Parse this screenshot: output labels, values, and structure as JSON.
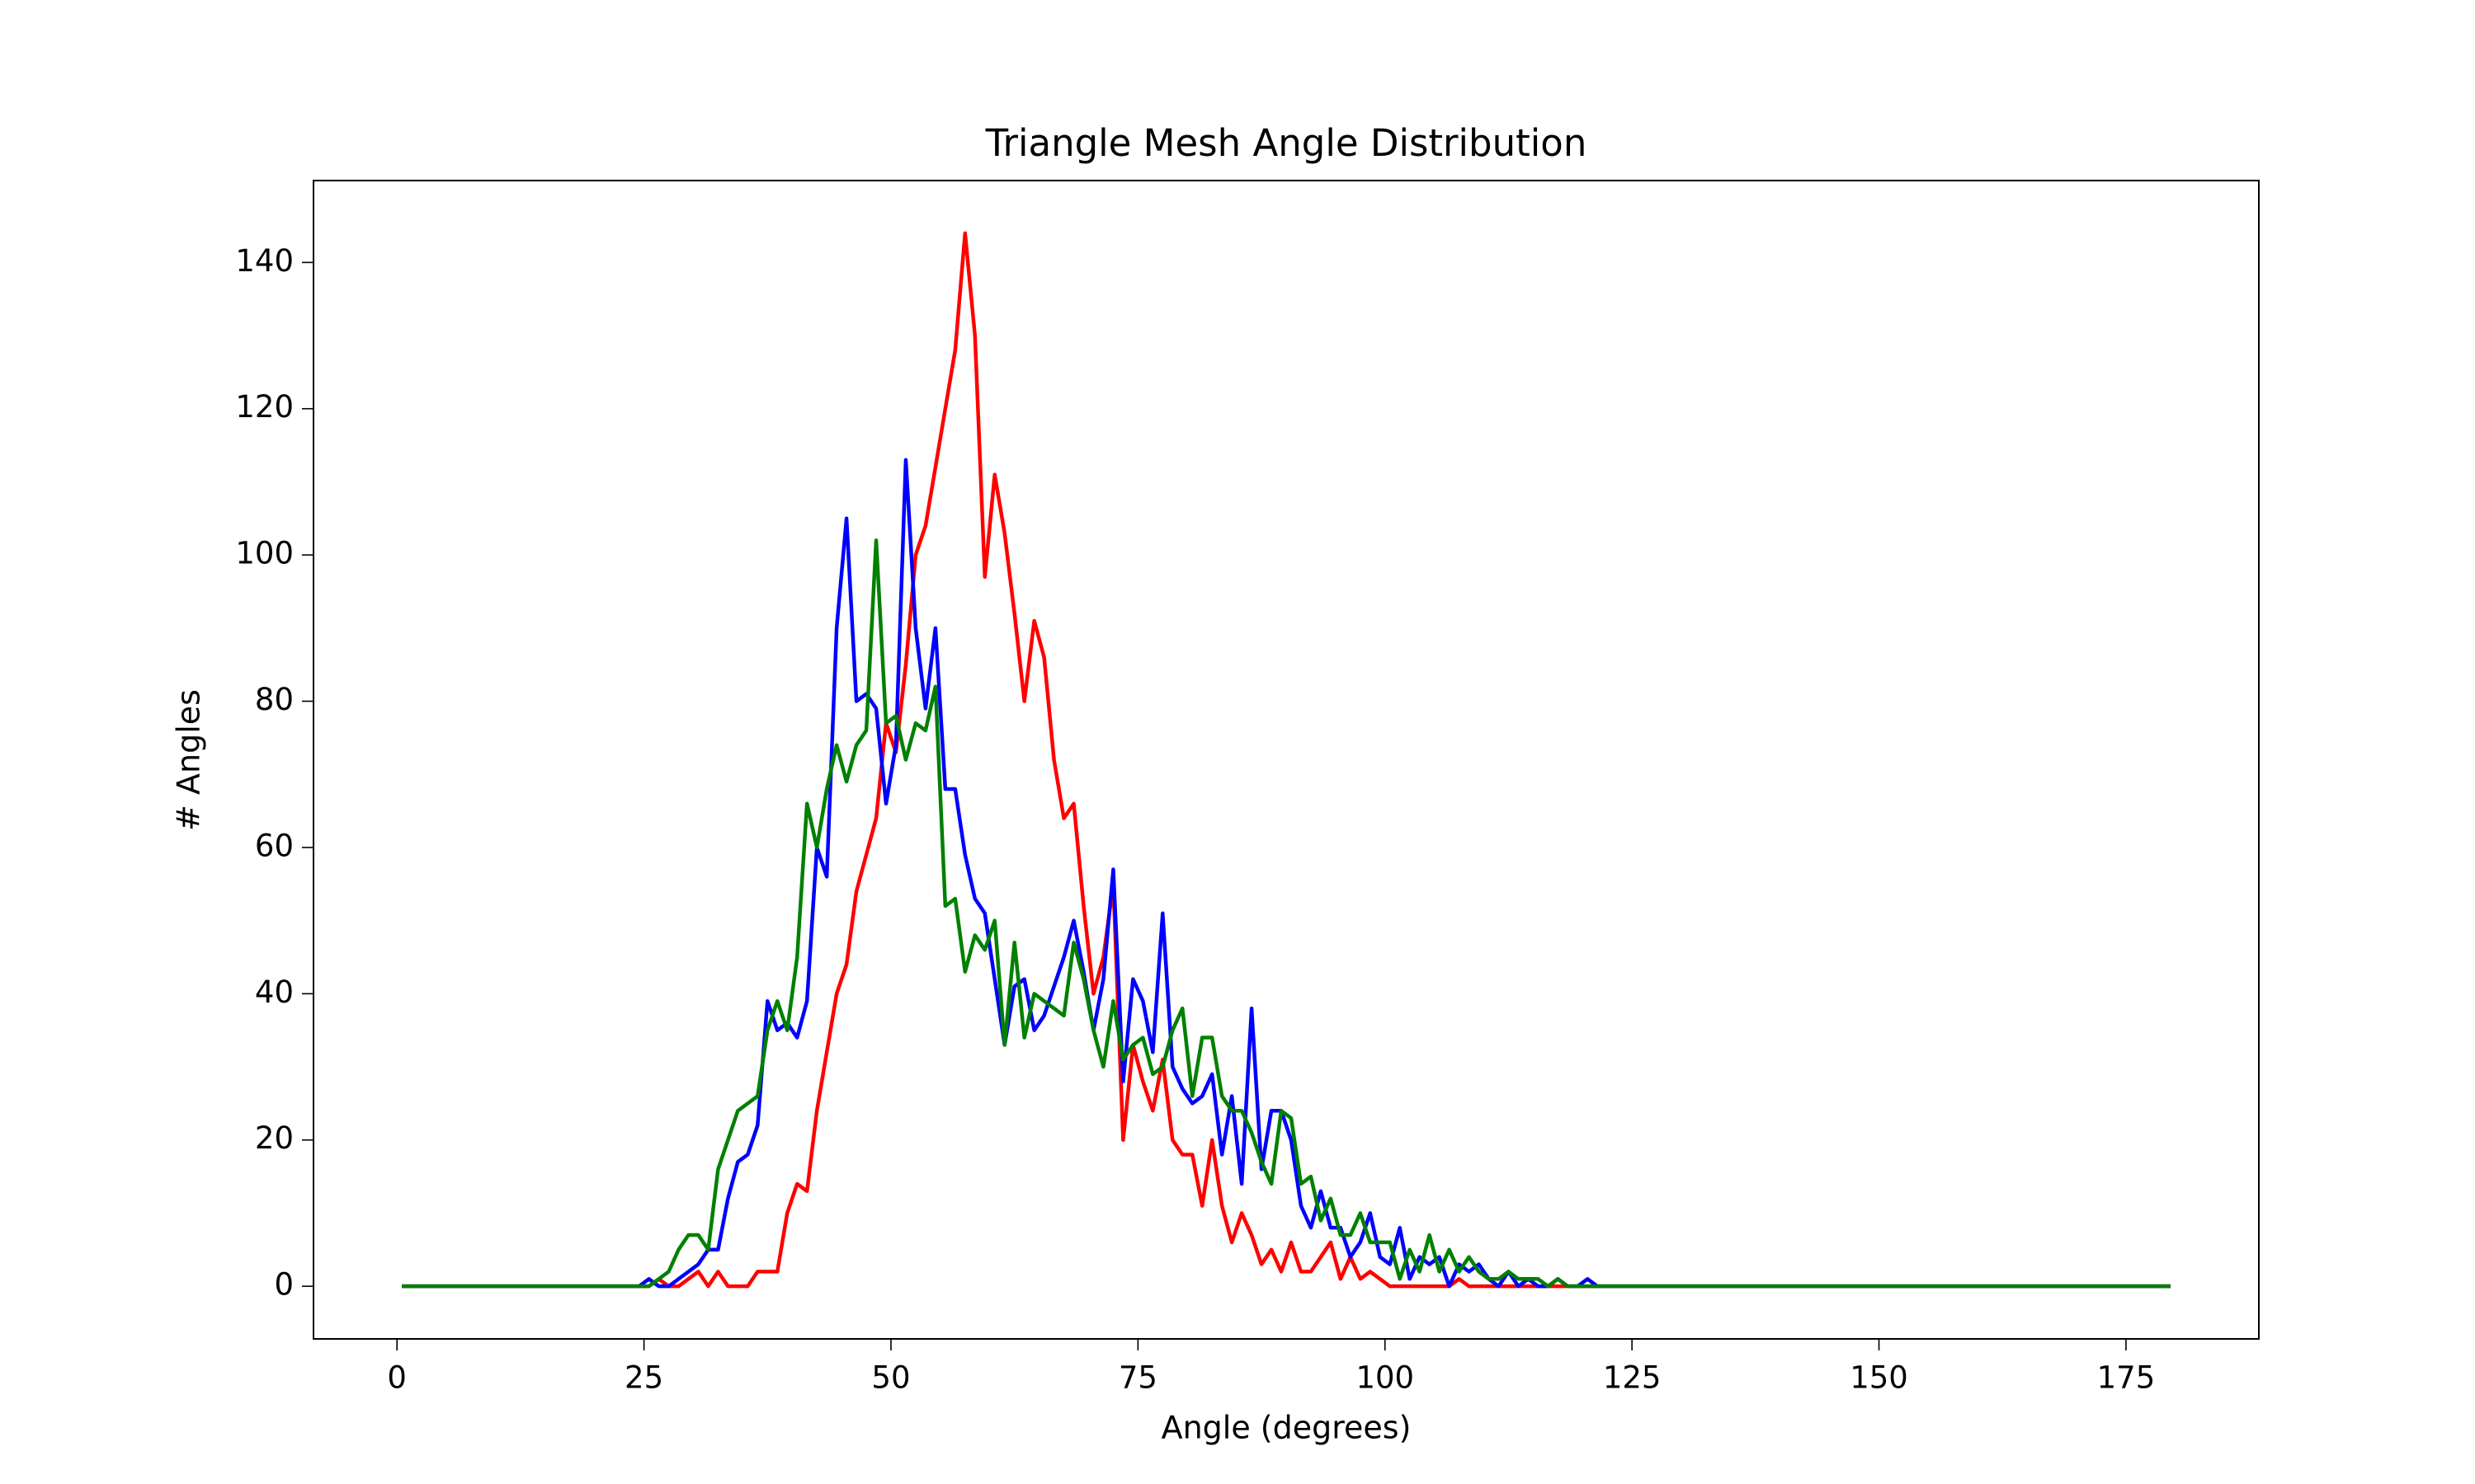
{
  "chart_data": {
    "type": "line",
    "title": "Triangle Mesh Angle Distribution",
    "x_label": "Angle (degrees)",
    "y_label": "# Angles",
    "x": [
      0.5,
      1.5,
      2.5,
      3.5,
      4.5,
      5.5,
      6.5,
      7.5,
      8.5,
      9.5,
      10.5,
      11.5,
      12.5,
      13.5,
      14.5,
      15.5,
      16.5,
      17.5,
      18.5,
      19.5,
      20.5,
      21.5,
      22.5,
      23.5,
      24.5,
      25.5,
      26.5,
      27.5,
      28.5,
      29.5,
      30.5,
      31.5,
      32.5,
      33.5,
      34.5,
      35.5,
      36.5,
      37.5,
      38.5,
      39.5,
      40.5,
      41.5,
      42.5,
      43.5,
      44.5,
      45.5,
      46.5,
      47.5,
      48.5,
      49.5,
      50.5,
      51.5,
      52.5,
      53.5,
      54.5,
      55.5,
      56.5,
      57.5,
      58.5,
      59.5,
      60.5,
      61.5,
      62.5,
      63.5,
      64.5,
      65.5,
      66.5,
      67.5,
      68.5,
      69.5,
      70.5,
      71.5,
      72.5,
      73.5,
      74.5,
      75.5,
      76.5,
      77.5,
      78.5,
      79.5,
      80.5,
      81.5,
      82.5,
      83.5,
      84.5,
      85.5,
      86.5,
      87.5,
      88.5,
      89.5,
      90.5,
      91.5,
      92.5,
      93.5,
      94.5,
      95.5,
      96.5,
      97.5,
      98.5,
      99.5,
      100.5,
      101.5,
      102.5,
      103.5,
      104.5,
      105.5,
      106.5,
      107.5,
      108.5,
      109.5,
      110.5,
      111.5,
      112.5,
      113.5,
      114.5,
      115.5,
      116.5,
      117.5,
      118.5,
      119.5,
      120.5,
      121.5,
      122.5,
      123.5,
      124.5,
      125.5,
      126.5,
      127.5,
      128.5,
      129.5,
      130.5,
      131.5,
      132.5,
      133.5,
      134.5,
      135.5,
      136.5,
      137.5,
      138.5,
      139.5,
      140.5,
      141.5,
      142.5,
      143.5,
      144.5,
      145.5,
      146.5,
      147.5,
      148.5,
      149.5,
      150.5,
      151.5,
      152.5,
      153.5,
      154.5,
      155.5,
      156.5,
      157.5,
      158.5,
      159.5,
      160.5,
      161.5,
      162.5,
      163.5,
      164.5,
      165.5,
      166.5,
      167.5,
      168.5,
      169.5,
      170.5,
      171.5,
      172.5,
      173.5,
      174.5,
      175.5,
      176.5,
      177.5,
      178.5,
      179.5
    ],
    "series": [
      {
        "color": "#ff0000",
        "values": [
          0,
          0,
          0,
          0,
          0,
          0,
          0,
          0,
          0,
          0,
          0,
          0,
          0,
          0,
          0,
          0,
          0,
          0,
          0,
          0,
          0,
          0,
          0,
          0,
          0,
          0,
          1,
          0,
          0,
          1,
          2,
          0,
          2,
          0,
          0,
          0,
          2,
          2,
          2,
          10,
          14,
          13,
          24,
          32,
          40,
          44,
          54,
          59,
          64,
          77,
          73,
          85,
          100,
          104,
          112,
          120,
          128,
          144,
          130,
          97,
          111,
          103,
          92,
          80,
          91,
          86,
          72,
          64,
          66,
          52,
          40,
          45,
          55,
          20,
          33,
          28,
          24,
          31,
          20,
          18,
          18,
          11,
          20,
          11,
          6,
          10,
          7,
          3,
          5,
          2,
          6,
          2,
          2,
          4,
          6,
          1,
          4,
          1,
          2,
          1,
          0,
          0,
          0,
          0,
          0,
          0,
          0,
          1,
          0,
          0,
          0,
          0,
          0,
          0,
          0,
          0,
          0,
          0,
          0,
          0,
          0,
          0,
          0,
          0,
          0,
          0,
          0,
          0,
          0,
          0,
          0,
          0,
          0,
          0,
          0,
          0,
          0,
          0,
          0,
          0,
          0,
          0,
          0,
          0,
          0,
          0,
          0,
          0,
          0,
          0,
          0,
          0,
          0,
          0,
          0,
          0,
          0,
          0,
          0,
          0,
          0,
          0,
          0,
          0,
          0,
          0,
          0,
          0,
          0,
          0,
          0,
          0,
          0,
          0,
          0,
          0,
          0,
          0,
          0,
          0
        ]
      },
      {
        "color": "#0000ff",
        "values": [
          0,
          0,
          0,
          0,
          0,
          0,
          0,
          0,
          0,
          0,
          0,
          0,
          0,
          0,
          0,
          0,
          0,
          0,
          0,
          0,
          0,
          0,
          0,
          0,
          0,
          1,
          0,
          0,
          1,
          2,
          3,
          5,
          5,
          12,
          17,
          18,
          22,
          39,
          35,
          36,
          34,
          39,
          60,
          56,
          90,
          105,
          80,
          81,
          79,
          66,
          74,
          113,
          90,
          79,
          90,
          68,
          68,
          59,
          53,
          51,
          42,
          33,
          41,
          42,
          35,
          37,
          41,
          45,
          50,
          43,
          35,
          42,
          57,
          28,
          42,
          39,
          32,
          51,
          30,
          27,
          25,
          26,
          29,
          18,
          26,
          14,
          38,
          16,
          24,
          24,
          20,
          11,
          8,
          13,
          8,
          8,
          4,
          6,
          10,
          4,
          3,
          8,
          1,
          4,
          3,
          4,
          0,
          3,
          2,
          3,
          1,
          0,
          2,
          0,
          1,
          0,
          0,
          1,
          0,
          0,
          1,
          0,
          0,
          0,
          0,
          0,
          0,
          0,
          0,
          0,
          0,
          0,
          0,
          0,
          0,
          0,
          0,
          0,
          0,
          0,
          0,
          0,
          0,
          0,
          0,
          0,
          0,
          0,
          0,
          0,
          0,
          0,
          0,
          0,
          0,
          0,
          0,
          0,
          0,
          0,
          0,
          0,
          0,
          0,
          0,
          0,
          0,
          0,
          0,
          0,
          0,
          0,
          0,
          0,
          0,
          0,
          0,
          0,
          0,
          0
        ]
      },
      {
        "color": "#008000",
        "values": [
          0,
          0,
          0,
          0,
          0,
          0,
          0,
          0,
          0,
          0,
          0,
          0,
          0,
          0,
          0,
          0,
          0,
          0,
          0,
          0,
          0,
          0,
          0,
          0,
          0,
          0,
          1,
          2,
          5,
          7,
          7,
          5,
          16,
          20,
          24,
          25,
          26,
          35,
          39,
          35,
          45,
          66,
          60,
          68,
          74,
          69,
          74,
          76,
          102,
          77,
          78,
          72,
          77,
          76,
          82,
          52,
          53,
          43,
          48,
          46,
          50,
          33,
          47,
          34,
          40,
          39,
          38,
          37,
          47,
          42,
          35,
          30,
          39,
          31,
          33,
          34,
          29,
          30,
          35,
          38,
          26,
          34,
          34,
          26,
          24,
          24,
          21,
          17,
          14,
          24,
          23,
          14,
          15,
          9,
          12,
          7,
          7,
          10,
          6,
          6,
          6,
          1,
          5,
          2,
          7,
          2,
          5,
          2,
          4,
          2,
          1,
          1,
          2,
          1,
          1,
          1,
          0,
          1,
          0,
          0,
          0,
          0,
          0,
          0,
          0,
          0,
          0,
          0,
          0,
          0,
          0,
          0,
          0,
          0,
          0,
          0,
          0,
          0,
          0,
          0,
          0,
          0,
          0,
          0,
          0,
          0,
          0,
          0,
          0,
          0,
          0,
          0,
          0,
          0,
          0,
          0,
          0,
          0,
          0,
          0,
          0,
          0,
          0,
          0,
          0,
          0,
          0,
          0,
          0,
          0,
          0,
          0,
          0,
          0,
          0,
          0,
          0,
          0,
          0,
          0
        ]
      }
    ],
    "xlim": [
      -8.45,
      188.45
    ],
    "ylim": [
      -7.2,
      151.2
    ],
    "xticks": [
      0,
      25,
      50,
      75,
      100,
      125,
      150,
      175
    ],
    "yticks": [
      0,
      20,
      40,
      60,
      80,
      100,
      120,
      140
    ],
    "grid": false
  }
}
